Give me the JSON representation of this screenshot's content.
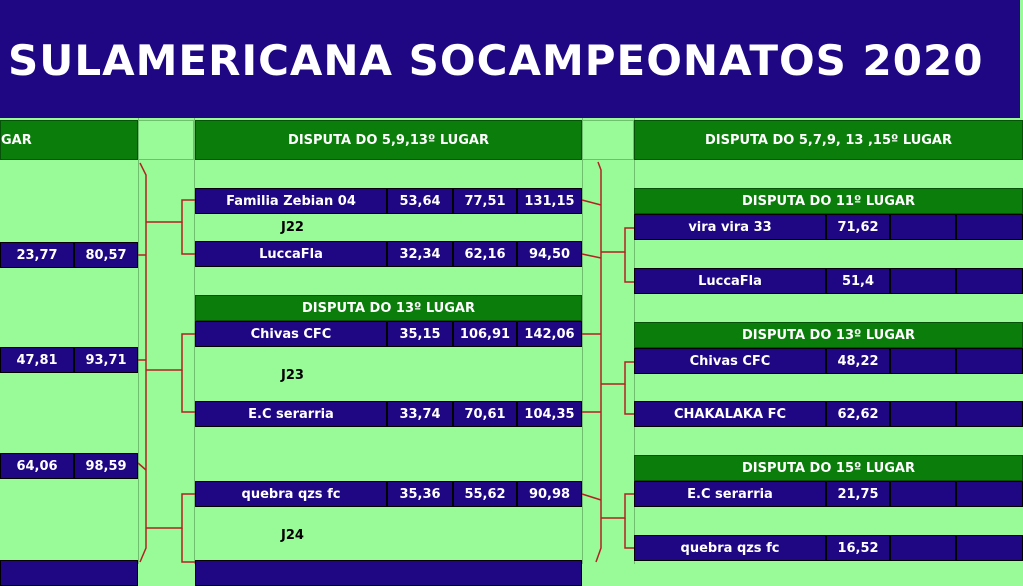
{
  "title": "SULAMERICANA SOCAMPEONATOS 2020",
  "colors": {
    "banner": "#1f0783",
    "header_green": "#0a7d0a",
    "background": "#98fb98",
    "cell": "#1f0783",
    "connector": "#b22222"
  },
  "left_column": {
    "header": "GAR",
    "rows": [
      {
        "a": "23,77",
        "b": "80,57"
      },
      {
        "a": "47,81",
        "b": "93,71"
      },
      {
        "a": "64,06",
        "b": "98,59"
      }
    ]
  },
  "middle_column": {
    "header": "DISPUTA DO 5,9,13º LUGAR",
    "matches": [
      {
        "label": "J22",
        "teams": [
          {
            "name": "Familia Zebian 04",
            "s1": "53,64",
            "s2": "77,51",
            "total": "131,15"
          },
          {
            "name": "LuccaFla",
            "s1": "32,34",
            "s2": "62,16",
            "total": "94,50"
          }
        ]
      },
      {
        "header": "DISPUTA DO 13º LUGAR",
        "label": "J23",
        "teams": [
          {
            "name": "Chivas CFC",
            "s1": "35,15",
            "s2": "106,91",
            "total": "142,06"
          },
          {
            "name": "E.C serarria",
            "s1": "33,74",
            "s2": "70,61",
            "total": "104,35"
          }
        ]
      },
      {
        "label": "J24",
        "teams": [
          {
            "name": "quebra qzs fc",
            "s1": "35,36",
            "s2": "55,62",
            "total": "90,98"
          }
        ]
      }
    ]
  },
  "right_column": {
    "header": "DISPUTA DO 5,7,9, 13 ,15º LUGAR",
    "groups": [
      {
        "header": "DISPUTA DO 11º LUGAR",
        "teams": [
          {
            "name": "vira vira 33",
            "score": "71,62"
          },
          {
            "name": "LuccaFla",
            "score": "51,4"
          }
        ]
      },
      {
        "header": "DISPUTA DO 13º LUGAR",
        "teams": [
          {
            "name": "Chivas CFC",
            "score": "48,22"
          },
          {
            "name": "CHAKALAKA FC",
            "score": "62,62"
          }
        ]
      },
      {
        "header": "DISPUTA DO 15º LUGAR",
        "teams": [
          {
            "name": "E.C serarria",
            "score": "21,75"
          },
          {
            "name": "quebra qzs fc",
            "score": "16,52"
          }
        ]
      }
    ]
  }
}
